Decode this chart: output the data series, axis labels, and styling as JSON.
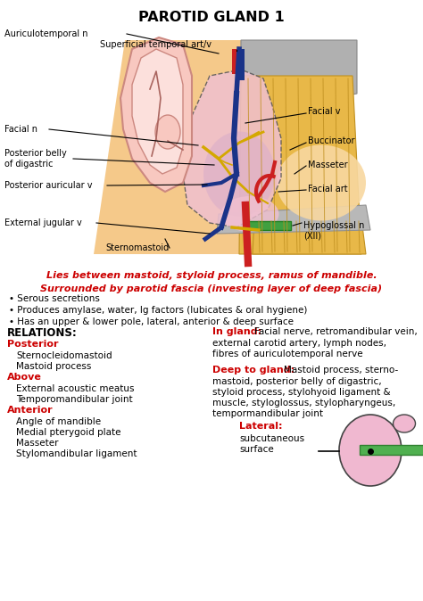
{
  "title": "PAROTID GLAND 1",
  "bg_color": "#ffffff",
  "red_color": "#cc0000",
  "black_color": "#000000",
  "red_text_1": "Lies between mastoid, styloid process, ramus of mandible.",
  "red_text_2": "Surrounded by parotid fascia (investing layer of deep fascia)",
  "bullet_1": "• Serous secretions",
  "bullet_2": "• Produces amylase, water, Ig factors (lubicates & oral hygiene)",
  "bullet_3": "• Has an upper & lower pole, lateral, anterior & deep surface",
  "relations_title": "RELATIONS:",
  "posterior_label": "Posterior",
  "posterior_items": [
    "Sternocleidomastoid",
    "Mastoid process"
  ],
  "above_label": "Above",
  "above_items": [
    "External acoustic meatus",
    "Temporomandibular joint"
  ],
  "anterior_label": "Anterior",
  "anterior_items": [
    "Angle of mandible",
    "Medial pterygoid plate",
    "Masseter",
    "Stylomandibular ligament"
  ],
  "in_gland_label": "In gland:",
  "in_gland_line1": "Facial nerve, retromandibular vein,",
  "in_gland_line2": "external carotid artery, lymph nodes,",
  "in_gland_line3": "fibres of auriculotemporal nerve",
  "deep_label": "Deep to gland:",
  "deep_line1": "Mastoid process, sterno-",
  "deep_line2": "mastoid, posterior belly of digastric,",
  "deep_line3": "styloid process, stylohyoid ligament &",
  "deep_line4": "muscle, styloglossus, stylopharyngeus,",
  "deep_line5": "tempormandibular joint",
  "lateral_label": "Lateral:",
  "lateral_text": "subcutaneous\nsurface"
}
